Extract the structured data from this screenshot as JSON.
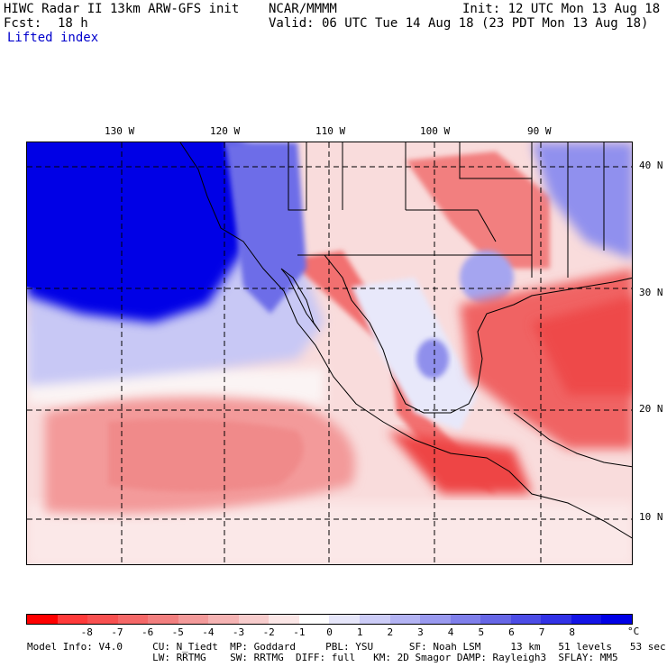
{
  "header": {
    "model": "HIWC Radar II 13km ARW-GFS init",
    "org": "NCAR/MMMM",
    "init": "Init: 12 UTC Mon 13 Aug 18",
    "fcst_label": "Fcst:",
    "fcst_value": "18 h",
    "valid": "Valid: 06 UTC Tue 14 Aug 18 (23 PDT Mon 13 Aug 18)",
    "field": "Lifted index"
  },
  "axes": {
    "lon_labels": [
      "130 W",
      "120 W",
      "110 W",
      "100 W",
      "90 W"
    ],
    "lat_labels": [
      "40 N",
      "30 N",
      "20 N",
      "10 N"
    ]
  },
  "colorbar": {
    "ticks": [
      "-8",
      "-7",
      "-6",
      "-5",
      "-4",
      "-3",
      "-2",
      "-1",
      "0",
      "1",
      "2",
      "3",
      "4",
      "5",
      "6",
      "7",
      "8"
    ],
    "unit": "°C",
    "colors": [
      "#ff0000",
      "#ff3a3a",
      "#f85050",
      "#f56868",
      "#f27f7f",
      "#f39a9a",
      "#f5b3b3",
      "#f7cccc",
      "#fbe6e6",
      "#ffffff",
      "#e6e6fa",
      "#ccccf7",
      "#b3b3f3",
      "#9999ef",
      "#7f7feb",
      "#6666e6",
      "#4c4ce6",
      "#3232e6",
      "#1414e6",
      "#0000e6"
    ]
  },
  "footer": {
    "line1": "Model Info: V4.0     CU: N_Tiedt  MP: Goddard     PBL: YSU      SF: Noah LSM     13 km   51 levels   53 sec",
    "line2": "                     LW: RRTMG    SW: RRTMG  DIFF: full   KM: 2D Smagor DAMP: Rayleigh3  SFLAY: MM5"
  }
}
